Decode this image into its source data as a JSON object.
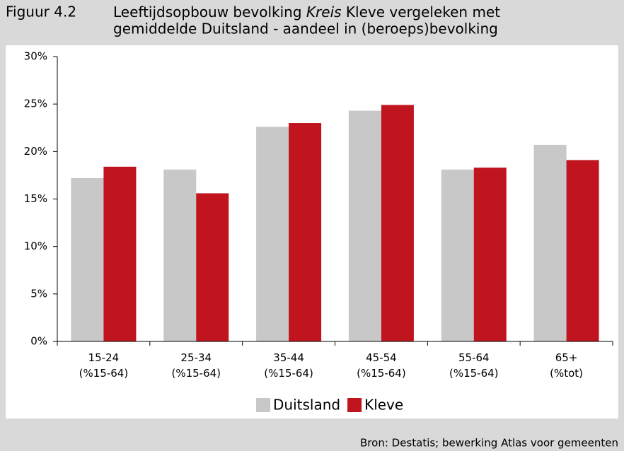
{
  "chart_data": {
    "type": "bar",
    "figure_label": "Figuur 4.2",
    "title_line1_before": "Leeftijdsopbouw bevolking",
    "title_line1_italic": "Kreis",
    "title_line1_after": "Kleve vergeleken met",
    "title_line2": "gemiddelde Duitsland - aandeel in (beroeps)bevolking",
    "source": "Bron: Destatis; bewerking Atlas voor gemeenten",
    "categories": [
      "15-24\n(%15-64)",
      "25-34\n(%15-64)",
      "35-44\n(%15-64)",
      "45-54\n(%15-64)",
      "55-64\n(%15-64)",
      "65+\n(%tot)"
    ],
    "series": [
      {
        "name": "Duitsland",
        "color": "#c8c8c8",
        "values": [
          17.2,
          18.1,
          22.6,
          24.3,
          18.1,
          20.7
        ]
      },
      {
        "name": "Kleve",
        "color": "#c0141e",
        "values": [
          18.4,
          15.6,
          23.0,
          24.9,
          18.3,
          19.1
        ]
      }
    ],
    "ylim": [
      0,
      30
    ],
    "yticks": [
      {
        "value": 0,
        "label": "0%"
      },
      {
        "value": 5,
        "label": "5%"
      },
      {
        "value": 10,
        "label": "10%"
      },
      {
        "value": 15,
        "label": "15%"
      },
      {
        "value": 20,
        "label": "20%"
      },
      {
        "value": 25,
        "label": "25%"
      },
      {
        "value": 30,
        "label": "30%"
      }
    ],
    "grid": false,
    "legend": "bottom"
  }
}
